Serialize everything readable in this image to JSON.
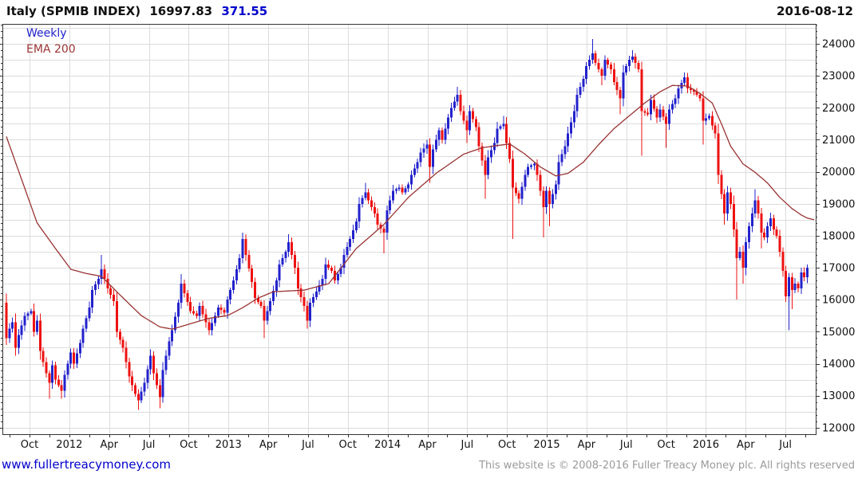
{
  "header": {
    "title_instrument": "Italy (SPMIB INDEX)",
    "title_price": "16997.83",
    "title_change": "371.55",
    "date": "2016-08-12"
  },
  "legend": {
    "series": "Weekly",
    "overlay": "EMA 200"
  },
  "footer": {
    "website": "www.fullertreacymoney.com",
    "copyright": "This website is © 2008-2016 Fuller Treacy Money plc. All rights reserved"
  },
  "chart_data": {
    "type": "candlestick",
    "timeframe": "weekly",
    "instrument": "Italy (SPMIB INDEX)",
    "last_close": 16997.83,
    "change": 371.55,
    "as_of_date": "2016-08-12",
    "overlay": "EMA 200",
    "grid": true,
    "legend_position": "top-left-inside",
    "x_axis": {
      "bars": 262,
      "start": "2011-08",
      "end": "2016-08",
      "labels": [
        "Oct",
        "2012",
        "Apr",
        "Jul",
        "Oct",
        "2013",
        "Apr",
        "Jul",
        "Oct",
        "2014",
        "Apr",
        "Jul",
        "Oct",
        "2015",
        "Apr",
        "Jul",
        "Oct",
        "2016",
        "Apr",
        "Jul"
      ]
    },
    "y_axis": {
      "min": 12000,
      "max": 24000,
      "tick_step": 1000,
      "minor_tick_step": 200,
      "gridline_step": 500,
      "labels": [
        "12000",
        "13000",
        "14000",
        "15000",
        "16000",
        "17000",
        "18000",
        "19000",
        "20000",
        "21000",
        "22000",
        "23000",
        "24000"
      ]
    },
    "colors": {
      "up": "#2222cc",
      "down": "#ee1111",
      "ema": "#993333",
      "grid": "#dcdcdc",
      "axis": "#333333",
      "label": "#111111"
    },
    "first_open": 15900,
    "close_keypoints": [
      [
        0,
        14800
      ],
      [
        1,
        15100
      ],
      [
        2,
        15300
      ],
      [
        3,
        14500
      ],
      [
        4,
        14900
      ],
      [
        6,
        15500
      ],
      [
        8,
        15650
      ],
      [
        9,
        15000
      ],
      [
        10,
        15350
      ],
      [
        11,
        14400
      ],
      [
        13,
        13700
      ],
      [
        14,
        13400,
        12900
      ],
      [
        15,
        13950
      ],
      [
        16,
        13500
      ],
      [
        18,
        13150,
        12900
      ],
      [
        19,
        13650
      ],
      [
        21,
        14350
      ],
      [
        22,
        14000
      ],
      [
        24,
        14650
      ],
      [
        25,
        15100
      ],
      [
        27,
        15750
      ],
      [
        28,
        16300
      ],
      [
        30,
        16650
      ],
      [
        31,
        16950,
        null,
        17400
      ],
      [
        33,
        16350
      ],
      [
        35,
        15950
      ],
      [
        36,
        15000
      ],
      [
        38,
        14500
      ],
      [
        39,
        14050
      ],
      [
        40,
        13600
      ],
      [
        42,
        13050
      ],
      [
        43,
        12850,
        12550
      ],
      [
        45,
        13400
      ],
      [
        47,
        14250
      ],
      [
        48,
        13700
      ],
      [
        50,
        12950,
        12600
      ],
      [
        51,
        13800
      ],
      [
        53,
        14700
      ],
      [
        54,
        15050
      ],
      [
        56,
        15900
      ],
      [
        57,
        16500,
        null,
        16800
      ],
      [
        58,
        16200
      ],
      [
        60,
        15650
      ],
      [
        62,
        15500
      ],
      [
        63,
        15800
      ],
      [
        65,
        15300
      ],
      [
        66,
        15050,
        14900
      ],
      [
        68,
        15500
      ],
      [
        69,
        15750
      ],
      [
        71,
        15600
      ],
      [
        72,
        16000
      ],
      [
        74,
        16600
      ],
      [
        76,
        17300
      ],
      [
        77,
        17900,
        null,
        18100
      ],
      [
        78,
        17400
      ],
      [
        80,
        16550
      ],
      [
        81,
        16050
      ],
      [
        83,
        15800
      ],
      [
        84,
        15350,
        14800
      ],
      [
        86,
        15950
      ],
      [
        88,
        16600
      ],
      [
        89,
        17100
      ],
      [
        91,
        17500
      ],
      [
        92,
        17800,
        null,
        18050
      ],
      [
        94,
        17000
      ],
      [
        95,
        16350
      ],
      [
        97,
        15800
      ],
      [
        98,
        15350,
        15100
      ],
      [
        99,
        15900
      ],
      [
        101,
        16250
      ],
      [
        103,
        16650
      ],
      [
        104,
        17100
      ],
      [
        106,
        16900
      ],
      [
        107,
        16600
      ],
      [
        109,
        17000
      ],
      [
        110,
        17400
      ],
      [
        112,
        17900
      ],
      [
        114,
        18450
      ],
      [
        115,
        19000
      ],
      [
        117,
        19350,
        null,
        19650
      ],
      [
        118,
        19100
      ],
      [
        120,
        18700
      ],
      [
        121,
        18350
      ],
      [
        123,
        18100,
        17450
      ],
      [
        124,
        18800
      ],
      [
        126,
        19400
      ],
      [
        128,
        19500
      ],
      [
        129,
        19350
      ],
      [
        131,
        19600
      ],
      [
        132,
        19900
      ],
      [
        134,
        20300
      ],
      [
        135,
        20600
      ],
      [
        137,
        20850,
        null,
        21000
      ],
      [
        138,
        20150,
        19650
      ],
      [
        139,
        20700
      ],
      [
        141,
        21300
      ],
      [
        142,
        21000
      ],
      [
        144,
        21700
      ],
      [
        145,
        22000
      ],
      [
        147,
        22400,
        null,
        22650
      ],
      [
        148,
        21900
      ],
      [
        150,
        21300,
        20900
      ],
      [
        151,
        21900
      ],
      [
        153,
        21400
      ],
      [
        154,
        20800
      ],
      [
        156,
        19900,
        19150
      ],
      [
        157,
        20450
      ],
      [
        159,
        20900
      ],
      [
        160,
        21350
      ],
      [
        162,
        21500,
        null,
        21750
      ],
      [
        163,
        20900
      ],
      [
        164,
        20400
      ],
      [
        165,
        19500,
        17900
      ],
      [
        167,
        19150
      ],
      [
        169,
        19900
      ],
      [
        170,
        20150
      ],
      [
        172,
        20250
      ],
      [
        173,
        19900
      ],
      [
        175,
        18900,
        17950
      ],
      [
        176,
        19400
      ],
      [
        177,
        19000,
        18300
      ],
      [
        179,
        19600
      ],
      [
        180,
        20300
      ],
      [
        182,
        20800
      ],
      [
        183,
        21200
      ],
      [
        185,
        21900
      ],
      [
        186,
        22400
      ],
      [
        188,
        22900
      ],
      [
        189,
        23300
      ],
      [
        191,
        23700,
        null,
        24150
      ],
      [
        192,
        23400
      ],
      [
        194,
        23000,
        22700
      ],
      [
        195,
        23500
      ],
      [
        197,
        23200
      ],
      [
        198,
        22800
      ],
      [
        200,
        22300,
        21800
      ],
      [
        201,
        23100
      ],
      [
        203,
        23500
      ],
      [
        204,
        23600,
        null,
        23800
      ],
      [
        206,
        23200
      ],
      [
        207,
        21900,
        20500
      ],
      [
        209,
        21800
      ],
      [
        210,
        22250
      ],
      [
        212,
        21700
      ],
      [
        213,
        21950
      ],
      [
        215,
        21500,
        20750
      ],
      [
        216,
        21950
      ],
      [
        218,
        22300
      ],
      [
        219,
        22600
      ],
      [
        221,
        22950,
        null,
        23100
      ],
      [
        222,
        22600
      ],
      [
        224,
        22500
      ],
      [
        226,
        22300
      ],
      [
        227,
        21600,
        20850
      ],
      [
        229,
        21750
      ],
      [
        230,
        21450
      ],
      [
        231,
        21200
      ],
      [
        232,
        19900
      ],
      [
        233,
        19300
      ],
      [
        234,
        18700,
        18350
      ],
      [
        235,
        19350
      ],
      [
        236,
        19000
      ],
      [
        237,
        18200
      ],
      [
        238,
        17300,
        16000
      ],
      [
        239,
        17500
      ],
      [
        240,
        17000,
        16500
      ],
      [
        241,
        17800
      ],
      [
        242,
        18300
      ],
      [
        243,
        18700
      ],
      [
        244,
        19100,
        null,
        19450
      ],
      [
        245,
        18700
      ],
      [
        246,
        18100,
        17600
      ],
      [
        247,
        17950
      ],
      [
        248,
        18300
      ],
      [
        249,
        18550
      ],
      [
        250,
        18200
      ],
      [
        251,
        18000
      ],
      [
        252,
        17500
      ],
      [
        253,
        16900
      ],
      [
        254,
        16100
      ],
      [
        255,
        16700,
        15050
      ],
      [
        256,
        16300,
        15700
      ],
      [
        257,
        16500
      ],
      [
        258,
        16350
      ],
      [
        259,
        16850
      ],
      [
        260,
        16700
      ],
      [
        261,
        16998,
        null,
        17100
      ]
    ],
    "ema_keypoints": [
      [
        0,
        21100
      ],
      [
        10,
        18400
      ],
      [
        16,
        17600
      ],
      [
        21,
        16950
      ],
      [
        26,
        16820
      ],
      [
        31,
        16730
      ],
      [
        37,
        16150
      ],
      [
        44,
        15500
      ],
      [
        50,
        15150
      ],
      [
        54,
        15080
      ],
      [
        60,
        15250
      ],
      [
        66,
        15420
      ],
      [
        72,
        15500
      ],
      [
        77,
        15750
      ],
      [
        82,
        16050
      ],
      [
        87,
        16250
      ],
      [
        97,
        16300
      ],
      [
        105,
        16500
      ],
      [
        114,
        17600
      ],
      [
        123,
        18350
      ],
      [
        131,
        19200
      ],
      [
        140,
        19950
      ],
      [
        149,
        20550
      ],
      [
        155,
        20750
      ],
      [
        160,
        20820
      ],
      [
        164,
        20870
      ],
      [
        169,
        20550
      ],
      [
        174,
        20150
      ],
      [
        179,
        19870
      ],
      [
        183,
        19950
      ],
      [
        188,
        20300
      ],
      [
        193,
        20850
      ],
      [
        198,
        21350
      ],
      [
        203,
        21750
      ],
      [
        208,
        22150
      ],
      [
        213,
        22500
      ],
      [
        217,
        22700
      ],
      [
        222,
        22680
      ],
      [
        226,
        22450
      ],
      [
        230,
        22150
      ],
      [
        233,
        21500
      ],
      [
        236,
        20800
      ],
      [
        240,
        20250
      ],
      [
        244,
        19980
      ],
      [
        248,
        19650
      ],
      [
        252,
        19200
      ],
      [
        256,
        18850
      ],
      [
        259,
        18650
      ],
      [
        261,
        18550
      ]
    ]
  }
}
